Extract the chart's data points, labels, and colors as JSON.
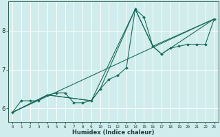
{
  "xlabel": "Humidex (Indice chaleur)",
  "bg_color": "#d0ecec",
  "grid_color": "#ffffff",
  "line_color": "#1a6b5a",
  "xlim": [
    -0.5,
    23.5
  ],
  "ylim": [
    5.65,
    8.75
  ],
  "yticks": [
    6,
    7,
    8
  ],
  "xticks": [
    0,
    1,
    2,
    3,
    4,
    5,
    6,
    7,
    8,
    9,
    10,
    11,
    12,
    13,
    14,
    15,
    16,
    17,
    18,
    19,
    20,
    21,
    22,
    23
  ],
  "series1": {
    "x": [
      0,
      1,
      2,
      3,
      4,
      5,
      6,
      7,
      8,
      9,
      10,
      11,
      12,
      13,
      14,
      15,
      16,
      17,
      18,
      19,
      20,
      21,
      22,
      23
    ],
    "y": [
      5.9,
      6.2,
      6.2,
      6.2,
      6.35,
      6.4,
      6.4,
      6.15,
      6.15,
      6.2,
      6.5,
      6.75,
      6.85,
      7.05,
      8.55,
      8.35,
      7.6,
      7.4,
      7.55,
      7.6,
      7.65,
      7.65,
      7.65,
      8.3
    ]
  },
  "series2": {
    "x": [
      0,
      4,
      9,
      14,
      16,
      23
    ],
    "y": [
      5.9,
      6.35,
      6.2,
      8.55,
      7.6,
      8.3
    ]
  },
  "series3": {
    "x": [
      0,
      23
    ],
    "y": [
      5.9,
      8.3
    ]
  },
  "series4": {
    "x": [
      0,
      4,
      9,
      10,
      14,
      16,
      17,
      23
    ],
    "y": [
      5.9,
      6.35,
      6.2,
      6.5,
      8.55,
      7.6,
      7.4,
      8.3
    ]
  },
  "xlabel_fontsize": 6.0,
  "xtick_fontsize": 4.2,
  "ytick_fontsize": 6.0
}
